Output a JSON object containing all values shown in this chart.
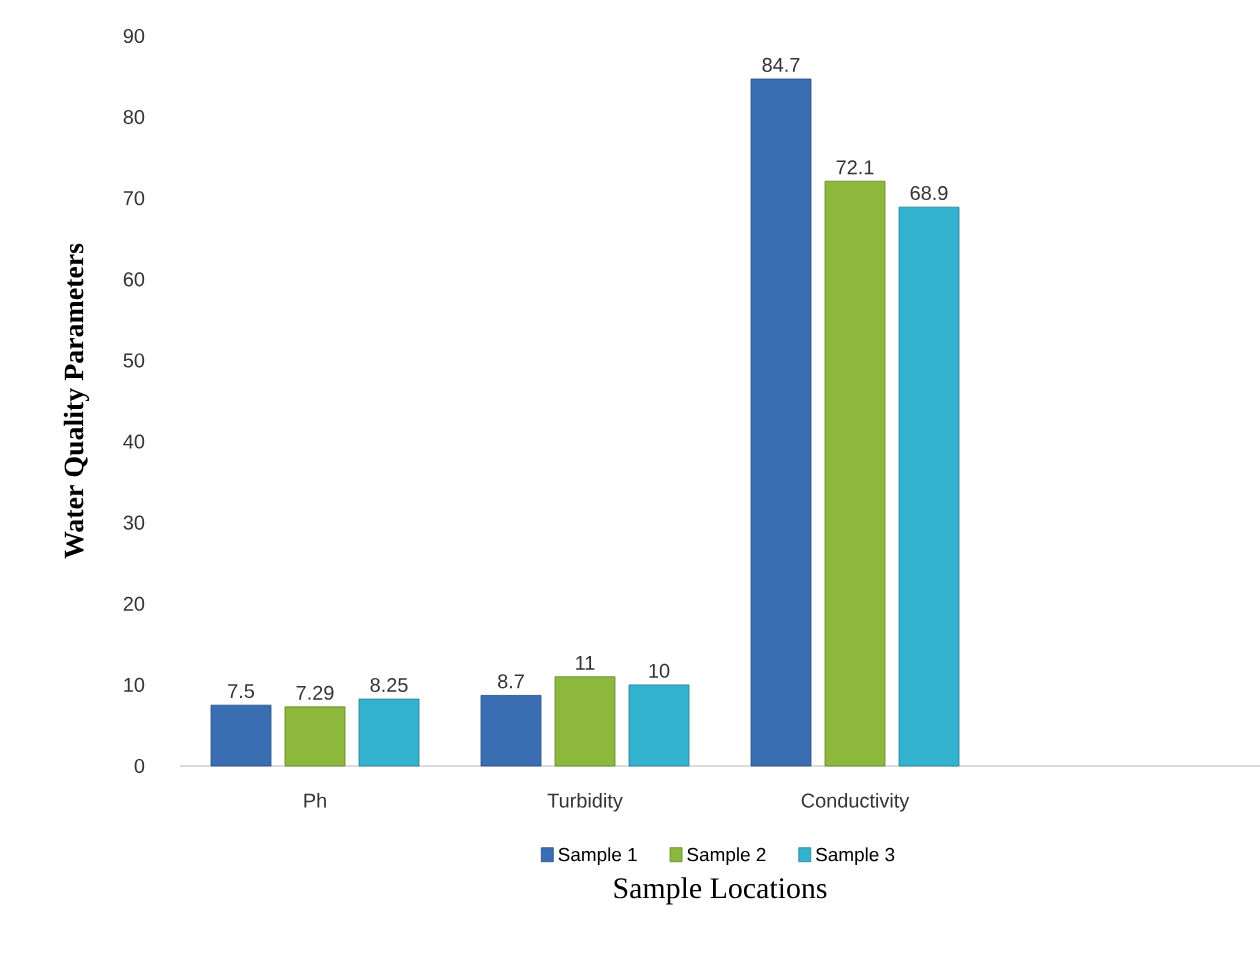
{
  "chart_data": {
    "type": "bar",
    "xlabel": "Sample Locations",
    "ylabel": "Water Quality Parameters",
    "categories": [
      "Ph",
      "Turbidity",
      "Conductivity",
      null
    ],
    "series": [
      {
        "name": "Sample 1",
        "color": "#3b6db3",
        "values": [
          7.5,
          8.7,
          84.7,
          null
        ]
      },
      {
        "name": "Sample 2",
        "color": "#8cb83c",
        "values": [
          7.29,
          11,
          72.1,
          null
        ]
      },
      {
        "name": "Sample 3",
        "color": "#33b2d0",
        "values": [
          8.25,
          10,
          68.9,
          null
        ]
      }
    ],
    "ylim": [
      0,
      90
    ],
    "yticks": [
      0,
      10,
      20,
      30,
      40,
      50,
      60,
      70,
      80,
      90
    ],
    "legend": "bottom",
    "data_labels": true
  }
}
